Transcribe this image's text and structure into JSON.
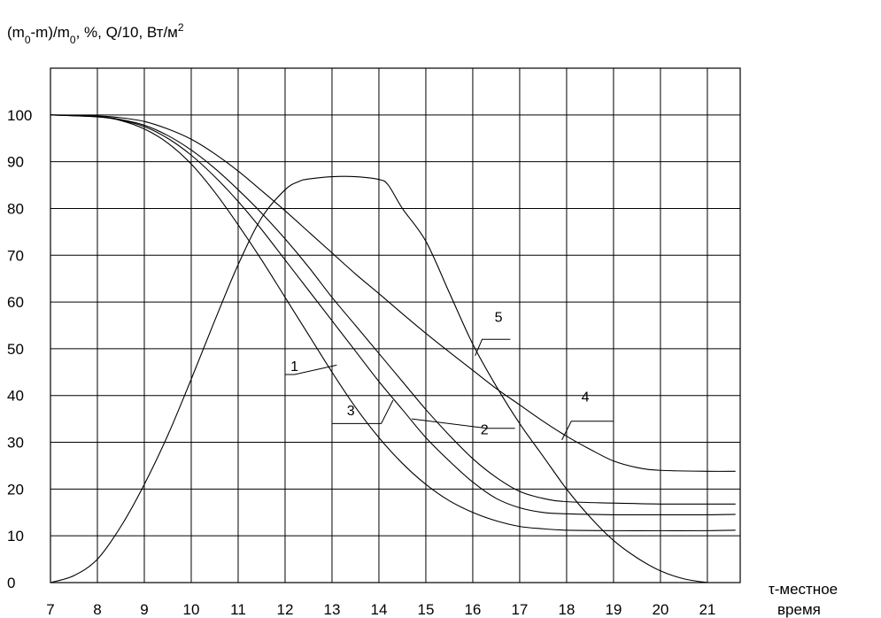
{
  "chart_data": {
    "type": "line",
    "ylabel": {
      "base": "(m",
      "sub1": "0",
      "mid1": "-m)/m",
      "sub2": "0",
      "mid2": ", %, Q/10, Вт/м",
      "sup": "2"
    },
    "xlabel_line1": "τ-местное",
    "xlabel_line2": "время",
    "xlim": [
      7,
      21.7
    ],
    "ylim": [
      0,
      110
    ],
    "x_ticks": [
      7,
      8,
      9,
      10,
      11,
      12,
      13,
      14,
      15,
      16,
      17,
      18,
      19,
      20,
      21
    ],
    "y_ticks": [
      0,
      10,
      20,
      30,
      40,
      50,
      60,
      70,
      80,
      90,
      100
    ],
    "grid": true,
    "series": [
      {
        "name": "1",
        "x": [
          7,
          8,
          8.5,
          9,
          9.5,
          10,
          10.5,
          11,
          11.5,
          12,
          12.5,
          13,
          13.5,
          14,
          14.5,
          15,
          15.5,
          16,
          16.5,
          17,
          17.5,
          18,
          19,
          20,
          21,
          21.6
        ],
        "y": [
          100,
          99.6,
          98.8,
          97,
          94,
          89.5,
          83.5,
          76.5,
          69,
          61,
          53,
          45,
          37.5,
          31,
          25.5,
          21,
          17.5,
          15,
          13.2,
          12,
          11.5,
          11.2,
          11.1,
          11.1,
          11.1,
          11.2
        ],
        "label_x": 12.2,
        "label_y": 44.5,
        "leader": [
          [
            12.0,
            44.5
          ],
          [
            12.2,
            44.5
          ],
          [
            13.1,
            46.5
          ]
        ]
      },
      {
        "name": "2",
        "x": [
          7,
          8,
          8.5,
          9,
          9.5,
          10,
          10.5,
          11,
          11.5,
          12,
          12.5,
          13,
          13.5,
          14,
          14.5,
          15,
          15.5,
          16,
          16.5,
          17,
          17.5,
          18,
          19,
          20,
          21,
          21.6
        ],
        "y": [
          100,
          99.7,
          99,
          97.8,
          95.6,
          92.5,
          88.6,
          84,
          79,
          73.5,
          67.5,
          61,
          55,
          49,
          43,
          37,
          31.5,
          26.5,
          22.5,
          19.5,
          18,
          17.3,
          17,
          16.8,
          16.8,
          16.8
        ],
        "label_x": 16.25,
        "label_y": 31,
        "leader": [
          [
            16.9,
            33
          ],
          [
            16.3,
            33
          ],
          [
            14.7,
            35
          ]
        ]
      },
      {
        "name": "3",
        "x": [
          7,
          8,
          8.5,
          9,
          9.5,
          10,
          10.5,
          11,
          11.5,
          12,
          12.5,
          13,
          13.5,
          14,
          14.5,
          15,
          15.5,
          16,
          16.5,
          17,
          17.5,
          18,
          19,
          20,
          21,
          21.6
        ],
        "y": [
          100,
          99.6,
          98.9,
          97.5,
          95,
          91.4,
          86.8,
          81.5,
          75.5,
          69,
          62.5,
          56,
          49.5,
          43,
          37,
          31,
          26,
          21.5,
          18,
          16,
          15,
          14.7,
          14.5,
          14.5,
          14.5,
          14.6
        ],
        "label_x": 13.4,
        "label_y": 35,
        "leader": [
          [
            14.3,
            39
          ],
          [
            14.05,
            34
          ],
          [
            13.0,
            34
          ]
        ]
      },
      {
        "name": "4",
        "x": [
          7,
          8,
          8.5,
          9,
          9.5,
          10,
          10.5,
          11,
          11.5,
          12,
          12.5,
          13,
          13.5,
          14,
          14.5,
          15,
          15.5,
          16,
          16.5,
          17,
          17.5,
          18,
          18.5,
          19,
          19.5,
          20,
          21,
          21.6
        ],
        "y": [
          100,
          99.8,
          99.4,
          98.6,
          97,
          94.8,
          91.7,
          88,
          83.8,
          79.5,
          75,
          70.5,
          66,
          61.8,
          57.5,
          53.3,
          49.3,
          45.4,
          41.5,
          38,
          34.5,
          31.3,
          28.5,
          26,
          24.6,
          24,
          23.8,
          23.8
        ],
        "label_x": 18.4,
        "label_y": 38,
        "leader": [
          [
            19.0,
            34.5
          ],
          [
            18.1,
            34.5
          ],
          [
            17.9,
            30.5
          ]
        ]
      },
      {
        "name": "5",
        "x": [
          7,
          7.5,
          8,
          8.5,
          9,
          9.5,
          10,
          10.5,
          11,
          11.5,
          12,
          12.3,
          12.5,
          13,
          13.5,
          14,
          14.2,
          14.5,
          15,
          15.5,
          16,
          16.5,
          17,
          17.5,
          18,
          18.5,
          19,
          19.5,
          20,
          20.5,
          21
        ],
        "y": [
          0,
          1.5,
          5,
          12,
          21,
          31.5,
          43.5,
          56,
          68,
          78,
          84,
          85.8,
          86.3,
          86.8,
          86.8,
          86.2,
          85,
          80,
          73,
          62,
          51,
          42,
          34,
          27,
          20,
          14,
          9,
          5.3,
          2.5,
          0.8,
          0
        ],
        "label_x": 16.55,
        "label_y": 55,
        "leader": [
          [
            16.8,
            52
          ],
          [
            16.2,
            52
          ],
          [
            16.05,
            48.5
          ]
        ]
      }
    ]
  }
}
